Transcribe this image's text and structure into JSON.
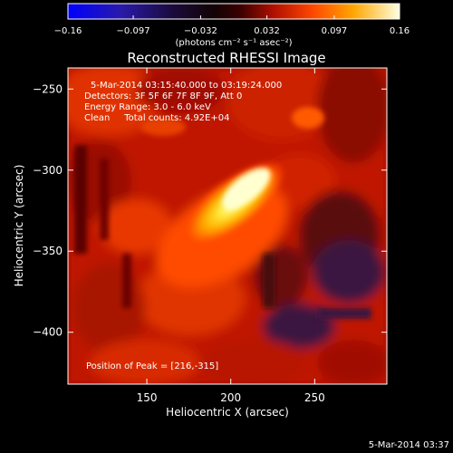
{
  "chart_data": {
    "type": "heatmap",
    "title": "Reconstructed RHESSI Image",
    "xlabel": "Heliocentric X (arcsec)",
    "ylabel": "Heliocentric Y (arcsec)",
    "xlim": [
      103,
      293
    ],
    "ylim": [
      -432,
      -237
    ],
    "x_ticks": [
      150,
      200,
      250
    ],
    "y_ticks": [
      -250,
      -300,
      -350,
      -400
    ],
    "colorbar": {
      "label": "(photons cm⁻² s⁻¹ asec⁻²)",
      "range": [
        -0.16,
        0.16
      ],
      "ticks": [
        "−0.16",
        "−0.097",
        "−0.032",
        "0.032",
        "0.097",
        "0.16"
      ],
      "tick_values": [
        -0.16,
        -0.097,
        -0.032,
        0.032,
        0.097,
        0.16
      ]
    },
    "annotations": [
      "5-Mar-2014 03:15:40.000 to 03:19:24.000",
      "Detectors: 3F 5F 6F 7F 8F 9F, Att 0",
      "Energy Range: 3.0 - 6.0 keV",
      "Clean     Total counts: 4.92E+04"
    ],
    "peak_label": "Position of Peak = [216,-315]",
    "peak": [
      216,
      -315
    ],
    "timestamp": "5-Mar-2014 03:37"
  }
}
